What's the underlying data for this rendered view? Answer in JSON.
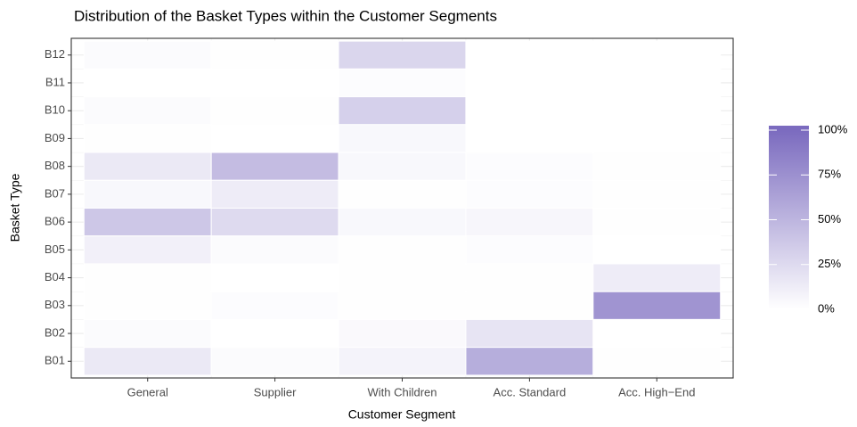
{
  "chart_data": {
    "type": "heatmap",
    "title": "Distribution of the Basket Types within the Customer Segments",
    "x_label": "Customer Segment",
    "y_label": "Basket Type",
    "x_categories": [
      "General",
      "Supplier",
      "With Children",
      "Acc. Standard",
      "Acc. High−End"
    ],
    "y_categories": [
      "B12",
      "B11",
      "B10",
      "B09",
      "B08",
      "B07",
      "B06",
      "B05",
      "B04",
      "B03",
      "B02",
      "B01"
    ],
    "values": [
      [
        3,
        1,
        28,
        0,
        0
      ],
      [
        0,
        0,
        2,
        0,
        0
      ],
      [
        3,
        1,
        32,
        0,
        0
      ],
      [
        1,
        0,
        5,
        0,
        0
      ],
      [
        15,
        45,
        5,
        2,
        1
      ],
      [
        5,
        13,
        1,
        2,
        1
      ],
      [
        38,
        25,
        5,
        6,
        1
      ],
      [
        10,
        3,
        1,
        2,
        0
      ],
      [
        1,
        0,
        1,
        1,
        13
      ],
      [
        1,
        2,
        1,
        1,
        72
      ],
      [
        3,
        0,
        4,
        18,
        0
      ],
      [
        15,
        3,
        8,
        55,
        1
      ]
    ],
    "color_low": "#ffffff",
    "color_high": "#7b6bbf",
    "clim": [
      0,
      100
    ],
    "cticks": [
      {
        "value": 0,
        "label": "0%"
      },
      {
        "value": 25,
        "label": "25%"
      },
      {
        "value": 50,
        "label": "50%"
      },
      {
        "value": 75,
        "label": "75%"
      },
      {
        "value": 100,
        "label": "100%"
      }
    ],
    "grid": true
  }
}
